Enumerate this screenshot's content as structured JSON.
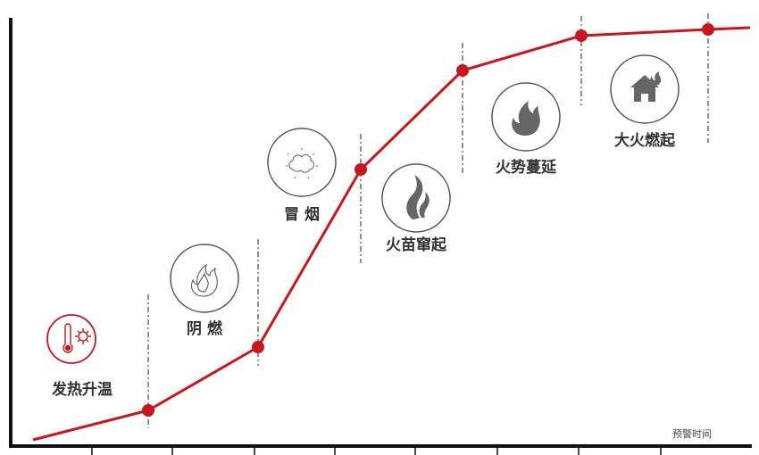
{
  "colors": {
    "curve": "#c8161d",
    "axis": "#111111",
    "icon_ring": "#555555",
    "accent_ring": "#c8161d"
  },
  "axis_label": "预警时间",
  "stages": [
    {
      "label": "发热升温",
      "icon": "thermometer-sun-icon",
      "highlight": true
    },
    {
      "label": "阴 燃",
      "icon": "smolder-flame-outline-icon",
      "highlight": false
    },
    {
      "label": "冒 烟",
      "icon": "smoke-cloud-icon",
      "highlight": false
    },
    {
      "label": "火苗窜起",
      "icon": "flame-wisp-icon",
      "highlight": false
    },
    {
      "label": "火势蔓延",
      "icon": "fire-icon",
      "highlight": false
    },
    {
      "label": "大火燃起",
      "icon": "house-fire-icon",
      "highlight": false
    }
  ]
}
